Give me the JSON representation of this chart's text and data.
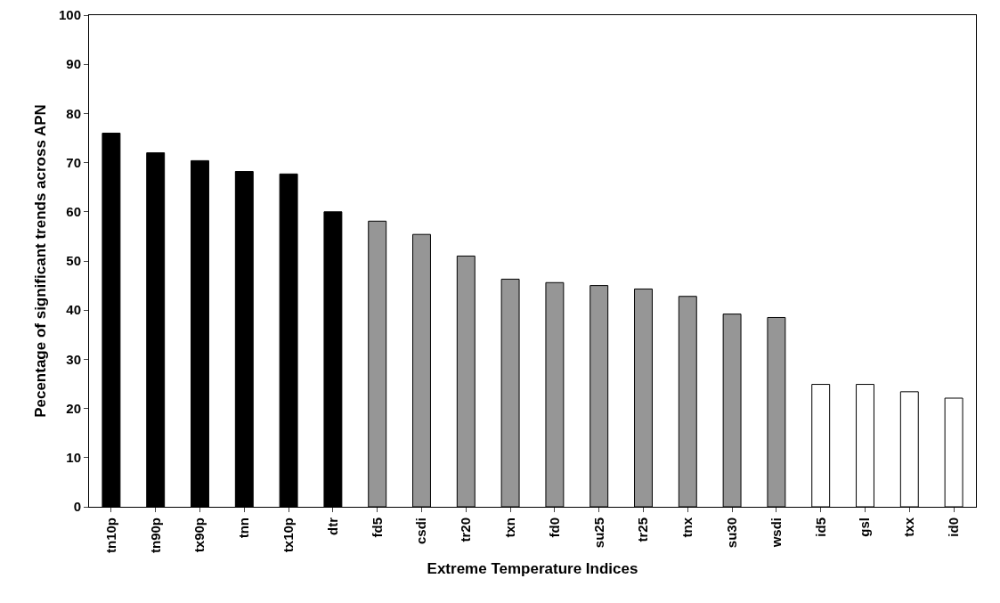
{
  "chart_data": {
    "type": "bar",
    "xlabel": "Extreme Temperature Indices",
    "ylabel": "Pecentage of significant trends across APN",
    "categories": [
      "tn10p",
      "tn90p",
      "tx90p",
      "tnn",
      "tx10p",
      "dtr",
      "fd5",
      "csdi",
      "tr20",
      "txn",
      "fd0",
      "su25",
      "tr25",
      "tnx",
      "su30",
      "wsdi",
      "id5",
      "gsl",
      "txx",
      "id0"
    ],
    "values": [
      76,
      72,
      70.4,
      68.2,
      67.7,
      60,
      58.1,
      55.4,
      51,
      46.3,
      45.6,
      45,
      44.3,
      42.8,
      39.2,
      38.5,
      24.9,
      24.9,
      23.4,
      22.1
    ],
    "colors": [
      "#000000",
      "#000000",
      "#000000",
      "#000000",
      "#000000",
      "#000000",
      "#969696",
      "#969696",
      "#969696",
      "#969696",
      "#969696",
      "#969696",
      "#969696",
      "#969696",
      "#969696",
      "#969696",
      "#ffffff",
      "#ffffff",
      "#ffffff",
      "#ffffff"
    ],
    "ylim": [
      0,
      100
    ],
    "yticks": [
      0,
      10,
      20,
      30,
      40,
      50,
      60,
      70,
      80,
      90,
      100
    ],
    "grid": false
  }
}
